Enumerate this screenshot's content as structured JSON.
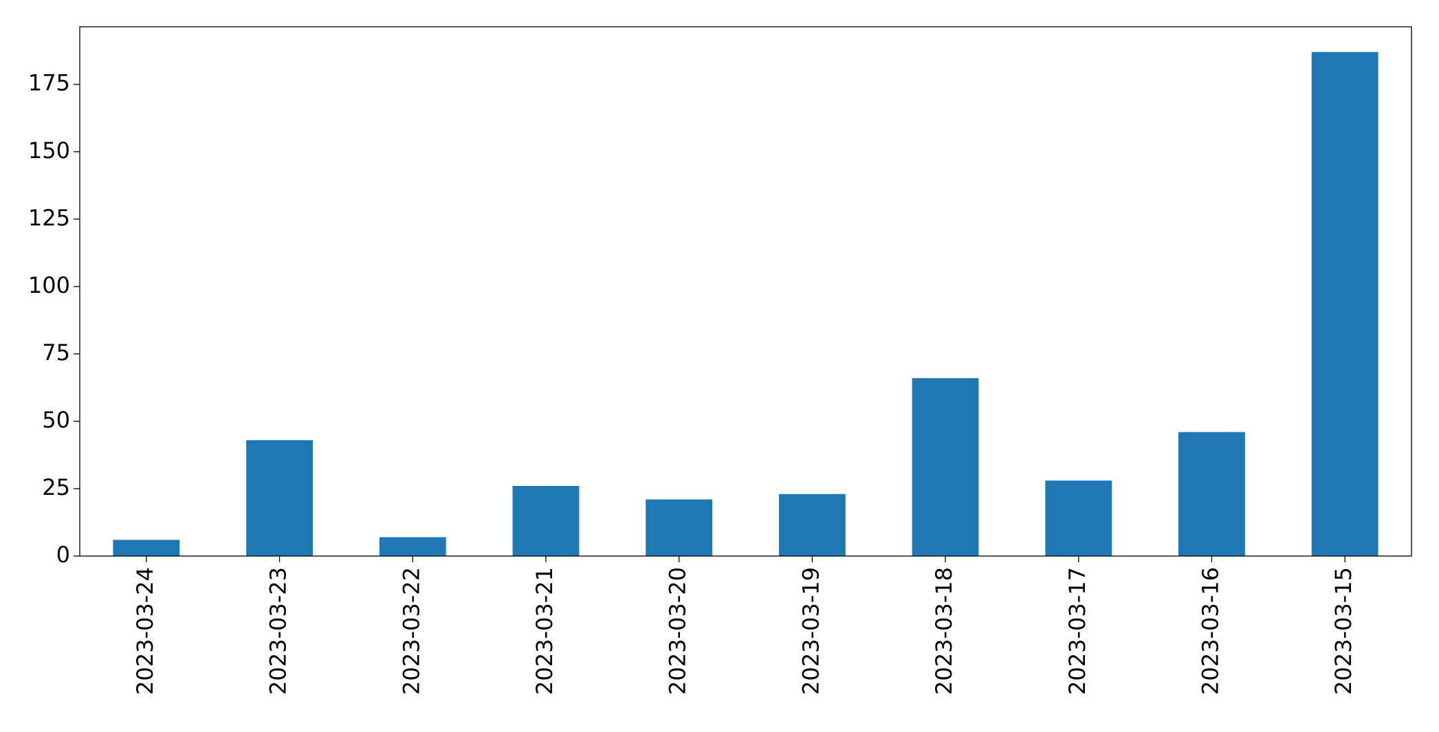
{
  "chart_data": {
    "type": "bar",
    "categories": [
      "2023-03-24",
      "2023-03-23",
      "2023-03-22",
      "2023-03-21",
      "2023-03-20",
      "2023-03-19",
      "2023-03-18",
      "2023-03-17",
      "2023-03-16",
      "2023-03-15"
    ],
    "values": [
      6,
      43,
      7,
      26,
      21,
      23,
      66,
      28,
      46,
      187
    ],
    "color": "#1f77b4",
    "ylim": [
      0,
      196.35
    ],
    "yticks": [
      0,
      25,
      50,
      75,
      100,
      125,
      150,
      175
    ],
    "grid": false
  }
}
